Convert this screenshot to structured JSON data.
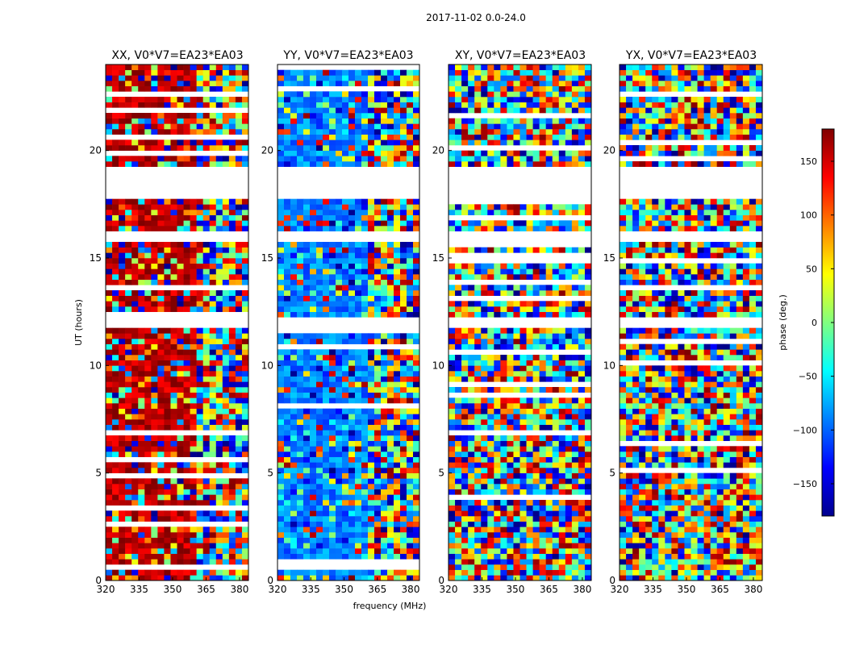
{
  "suptitle": "2017-11-02 0.0-24.0",
  "xlabel": "frequency (MHz)",
  "ylabel": "UT (hours)",
  "colorbar": {
    "label": "phase (deg.)",
    "range": [
      -180,
      180
    ],
    "ticks": [
      150,
      100,
      50,
      0,
      -50,
      -100,
      -150
    ],
    "tick_labels": [
      "150",
      "100",
      "50",
      "0",
      "−50",
      "−100",
      "−150"
    ],
    "colormap": "jet"
  },
  "chart_data": {
    "type": "heatmap",
    "x_unit": "MHz",
    "y_unit": "hours",
    "xlim": [
      320,
      384
    ],
    "ylim": [
      0,
      24
    ],
    "x_ticks": [
      320,
      335,
      350,
      365,
      380
    ],
    "x_tick_labels": [
      "320",
      "335",
      "350",
      "365",
      "380"
    ],
    "y_ticks": [
      0,
      5,
      10,
      15,
      20
    ],
    "y_tick_labels": [
      "0",
      "5",
      "10",
      "15",
      "20"
    ],
    "empty_ut_ranges": [
      [
        17.8,
        19.3
      ],
      [
        15.7,
        16.3
      ],
      [
        11.8,
        12.3
      ]
    ],
    "panels": [
      {
        "title": "XX, V0*V7=EA23*EA03",
        "coherent_phase_deg": 160,
        "coherent_until_mhz": 360
      },
      {
        "title": "YY, V0*V7=EA23*EA03",
        "coherent_phase_deg": -90,
        "coherent_until_mhz": 360
      },
      {
        "title": "XY, V0*V7=EA23*EA03",
        "coherent_phase_deg": null,
        "coherent_until_mhz": null
      },
      {
        "title": "YX, V0*V7=EA23*EA03",
        "coherent_phase_deg": null,
        "coherent_until_mhz": null
      }
    ]
  }
}
